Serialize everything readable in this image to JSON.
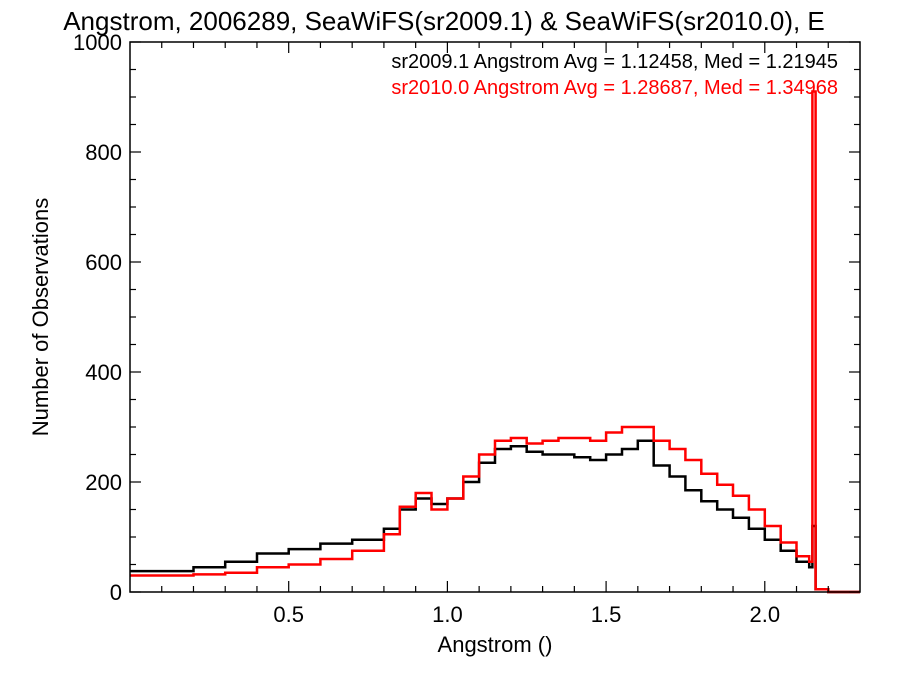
{
  "chart_data": {
    "type": "line",
    "title": "Angstrom, 2006289, SeaWiFS(sr2009.1) & SeaWiFS(sr2010.0), E",
    "xlabel": "Angstrom ()",
    "ylabel": "Number of Observations",
    "xlim": [
      0.0,
      2.3
    ],
    "ylim": [
      0,
      1000
    ],
    "x_ticks": [
      0.5,
      1.0,
      1.5,
      2.0
    ],
    "x_tick_labels": [
      "0.5",
      "1.0",
      "1.5",
      "2.0"
    ],
    "y_ticks": [
      0,
      200,
      400,
      600,
      800,
      1000
    ],
    "y_tick_labels": [
      "0",
      "200",
      "400",
      "600",
      "800",
      "1000"
    ],
    "grid": false,
    "series": [
      {
        "name": "sr2009.1",
        "color": "#000000",
        "legend_text": "sr2009.1 Angstrom Avg = 1.12458, Med = 1.21945",
        "x": [
          0.0,
          0.1,
          0.2,
          0.3,
          0.4,
          0.5,
          0.6,
          0.7,
          0.8,
          0.85,
          0.9,
          0.95,
          1.0,
          1.05,
          1.1,
          1.15,
          1.2,
          1.25,
          1.3,
          1.35,
          1.4,
          1.45,
          1.5,
          1.55,
          1.6,
          1.65,
          1.7,
          1.75,
          1.8,
          1.85,
          1.9,
          1.95,
          2.0,
          2.05,
          2.1,
          2.14,
          2.15,
          2.16,
          2.2,
          2.3
        ],
        "y": [
          38,
          38,
          45,
          55,
          70,
          78,
          88,
          95,
          115,
          150,
          170,
          160,
          170,
          200,
          235,
          260,
          265,
          255,
          250,
          250,
          245,
          240,
          250,
          260,
          275,
          230,
          210,
          185,
          165,
          150,
          135,
          115,
          95,
          75,
          55,
          45,
          120,
          5,
          0,
          0
        ]
      },
      {
        "name": "sr2010.0",
        "color": "#ff0000",
        "legend_text": "sr2010.0 Angstrom Avg = 1.28687, Med = 1.34968",
        "x": [
          0.0,
          0.1,
          0.2,
          0.3,
          0.4,
          0.5,
          0.6,
          0.7,
          0.8,
          0.85,
          0.9,
          0.95,
          1.0,
          1.05,
          1.1,
          1.15,
          1.2,
          1.25,
          1.3,
          1.35,
          1.4,
          1.45,
          1.5,
          1.55,
          1.6,
          1.65,
          1.7,
          1.75,
          1.8,
          1.85,
          1.9,
          1.95,
          2.0,
          2.05,
          2.1,
          2.14,
          2.15,
          2.16,
          2.2,
          2.3
        ],
        "y": [
          30,
          30,
          32,
          35,
          45,
          50,
          60,
          75,
          105,
          155,
          180,
          150,
          170,
          210,
          250,
          275,
          280,
          270,
          275,
          280,
          280,
          275,
          290,
          300,
          300,
          275,
          260,
          240,
          215,
          195,
          175,
          150,
          120,
          90,
          65,
          55,
          910,
          5,
          0,
          0
        ]
      }
    ]
  }
}
